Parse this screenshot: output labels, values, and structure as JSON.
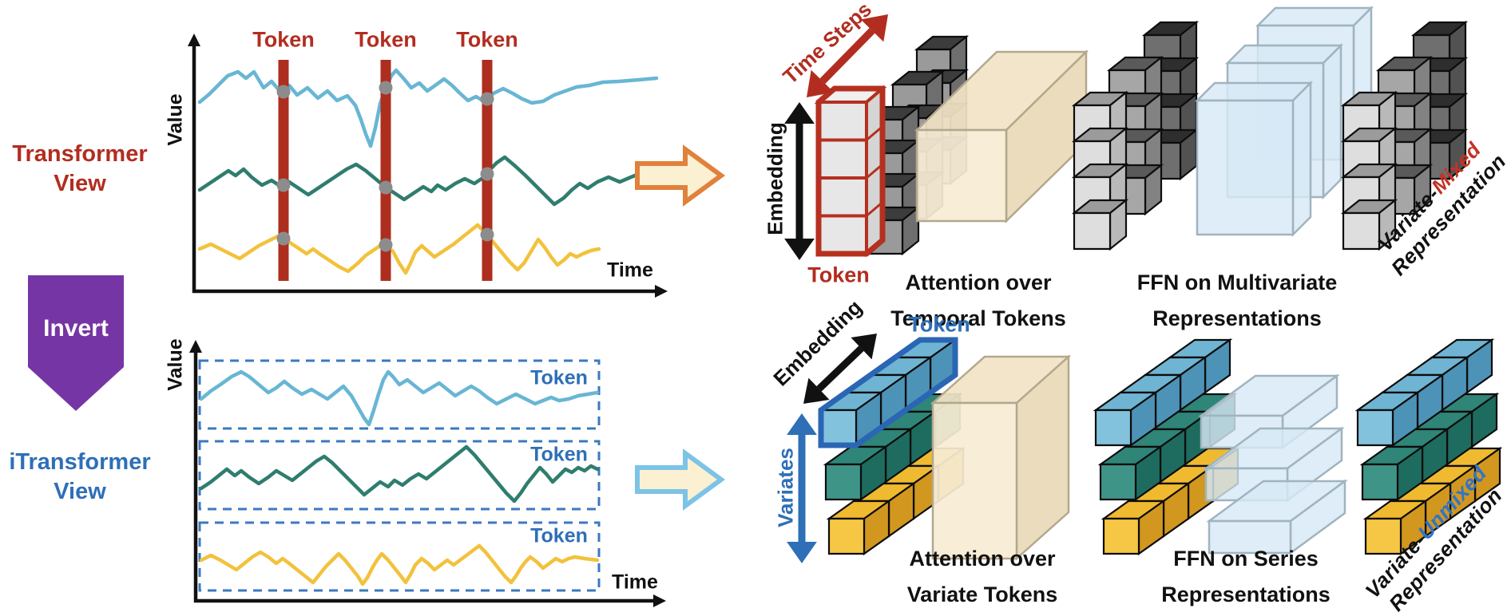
{
  "left_panel": {
    "transformer_view": {
      "line1": "Transformer",
      "line2": "View"
    },
    "invert_label": "Invert",
    "itransformer_view": {
      "line1": "iTransformer",
      "line2": "View"
    }
  },
  "transformer_chart": {
    "y_axis_label": "Value",
    "x_axis_label": "Time",
    "token_labels": [
      "Token",
      "Token",
      "Token"
    ]
  },
  "itransformer_chart": {
    "y_axis_label": "Value",
    "x_axis_label": "Time",
    "token_labels": [
      "Token",
      "Token",
      "Token"
    ]
  },
  "transformer_flow": {
    "time_steps_label": "Time Steps",
    "embedding_label": "Embedding",
    "token_label": "Token",
    "attention_label_line1": "Attention over",
    "attention_label_line2": "Temporal Tokens",
    "ffn_label_line1": "FFN on Multivariate",
    "ffn_label_line2": "Representations",
    "representation_prefix": "Variate-",
    "representation_highlight": "Mixed",
    "representation_line2": "Representation"
  },
  "itransformer_flow": {
    "embedding_label": "Embedding",
    "token_label": "Token",
    "variates_label": "Variates",
    "attention_label_line1": "Attention over",
    "attention_label_line2": "Variate Tokens",
    "ffn_label_line1": "FFN on Series",
    "ffn_label_line2": "Representations",
    "representation_prefix": "Variate-",
    "representation_highlight": "Unmixed",
    "representation_line2": "Representation"
  },
  "colors": {
    "dark_red": "#b22d20",
    "bar_red": "#ad2e1f",
    "blue_text": "#2e6fb7",
    "purple": "#7635a5",
    "mixed_red": "#c43325",
    "unmixed_blue": "#2e74c9",
    "series_blue": "#68b6d4",
    "series_teal": "#2f7d6e",
    "series_yellow": "#f2c23c",
    "dot_gray": "#8c8c8c",
    "dashed_blue": "#3b79c0",
    "axis_black": "#111111",
    "arrow_orange_stroke": "#e0813c",
    "arrow_blue_stroke": "#7cc3e8",
    "arrow_fill": "#fbf0d2",
    "token_outline_red": "#b5301f",
    "token_cell_fill": "#e7e7e7",
    "token_outline_blue": "#2b66b5",
    "tan_front": "#f8ecd3",
    "tan_top": "#f1e3c6",
    "tan_side": "#e9d9b8",
    "tan_stroke": "#b3a88e",
    "ffn_fill": "#d7e9f5",
    "ffn_stroke": "#a0b4bf",
    "gray_front": "#9a9a9a",
    "gray_side": "#6e6e6e",
    "gray_top": "#3c3c3c",
    "light_front": "#dedede",
    "light_side": "#b9b9b9",
    "light_top": "#9b9b9b",
    "mid_front": "#a6a6a6",
    "mid_side": "#828282",
    "mid_top": "#5a5a5a",
    "darkgray_front": "#6f6f6f",
    "darkgray_side": "#525252",
    "darkgray_top": "#2e2e2e",
    "row_blue_front": "#82c2dd",
    "row_blue_top": "#6fb5d3",
    "row_blue_side": "#4d93b8",
    "row_teal_front": "#3f9488",
    "row_teal_top": "#2f8577",
    "row_teal_side": "#1e6c5f",
    "row_yellow_front": "#f6c645",
    "row_yellow_top": "#f0ba30",
    "row_yellow_side": "#d2971f"
  }
}
